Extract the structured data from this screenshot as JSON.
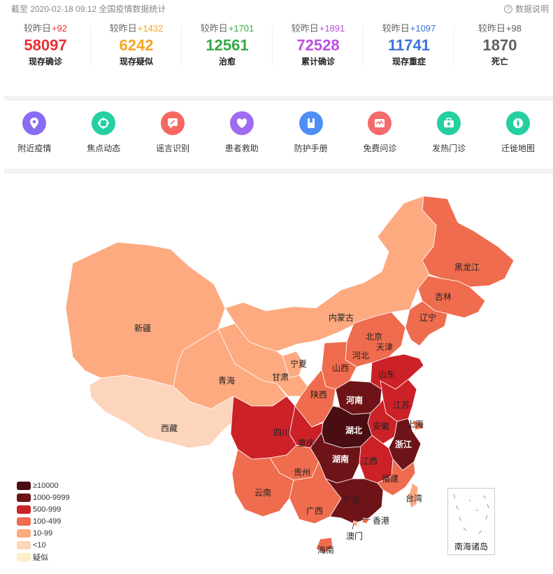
{
  "header": {
    "timestamp": "截至 2020-02-18 09:12 全国疫情数据统计",
    "help_label": "数据说明",
    "help_icon": "?"
  },
  "stats": [
    {
      "delta_label": "较昨日",
      "delta_value": "+92",
      "value": "58097",
      "label": "现存确诊",
      "color": "#e83132"
    },
    {
      "delta_label": "较昨日",
      "delta_value": "+1432",
      "value": "6242",
      "label": "现存疑似",
      "color": "#f5a623"
    },
    {
      "delta_label": "较昨日",
      "delta_value": "+1701",
      "value": "12561",
      "label": "治愈",
      "color": "#34aa45"
    },
    {
      "delta_label": "较昨日",
      "delta_value": "+1891",
      "value": "72528",
      "label": "累计确诊",
      "color": "#bc4ee0"
    },
    {
      "delta_label": "较昨日",
      "delta_value": "+1097",
      "value": "11741",
      "label": "现存重症",
      "color": "#3a72dd"
    },
    {
      "delta_label": "较昨日",
      "delta_value": "+98",
      "value": "1870",
      "label": "死亡",
      "color": "#5d5d5d"
    }
  ],
  "features": [
    {
      "label": "附近疫情",
      "icon": "location-pin-icon",
      "color": "#8a6cf3"
    },
    {
      "label": "焦点动态",
      "icon": "focus-icon",
      "color": "#25cfa0"
    },
    {
      "label": "谣言识别",
      "icon": "rumor-icon",
      "color": "#f5675f"
    },
    {
      "label": "患者救助",
      "icon": "heart-icon",
      "color": "#a06bf0"
    },
    {
      "label": "防护手册",
      "icon": "book-icon",
      "color": "#4d8ff5"
    },
    {
      "label": "免费问诊",
      "icon": "consult-icon",
      "color": "#f56a6a"
    },
    {
      "label": "发热门诊",
      "icon": "medkit-icon",
      "color": "#25cfa0"
    },
    {
      "label": "迁徙地图",
      "icon": "compass-icon",
      "color": "#25cfa0"
    }
  ],
  "map": {
    "provinces": [
      "黑龙江",
      "吉林",
      "辽宁",
      "内蒙古",
      "北京",
      "天津",
      "河北",
      "山西",
      "山东",
      "宁夏",
      "甘肃",
      "青海",
      "新疆",
      "西藏",
      "陕西",
      "河南",
      "江苏",
      "上海",
      "安徽",
      "湖北",
      "浙江",
      "重庆",
      "四川",
      "贵州",
      "湖南",
      "江西",
      "福建",
      "云南",
      "广西",
      "广东",
      "台湾",
      "香港",
      "澳门",
      "海南"
    ],
    "inset_label": "南海诸岛"
  },
  "legend": [
    {
      "label": "≥10000",
      "color": "#4a0d12"
    },
    {
      "label": "1000-9999",
      "color": "#6e1418"
    },
    {
      "label": "500-999",
      "color": "#cc2127"
    },
    {
      "label": "100-499",
      "color": "#ef6c4e"
    },
    {
      "label": "10-99",
      "color": "#fdaa80"
    },
    {
      "label": "<10",
      "color": "#fdd4bc"
    },
    {
      "label": "疑似",
      "color": "#fdeec9"
    }
  ]
}
